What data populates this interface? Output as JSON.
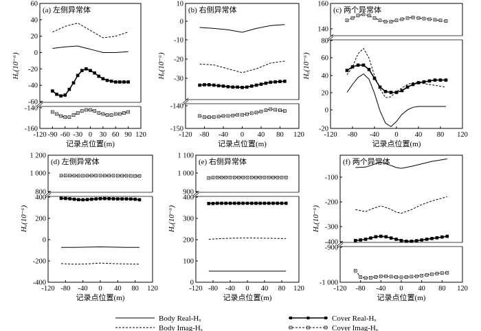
{
  "legend": {
    "body_real": "Body Real-Hₓ",
    "body_imag": "Body Imag-Hₓ",
    "cover_real": "Cover Real-Hₓ",
    "cover_imag": "Cover Imag-Hₓ"
  },
  "chart_data": [
    {
      "type": "line",
      "title": "(a) 左侧异常体",
      "xlabel": "记录点位置(m)",
      "ylabel": "Hₓ(10⁻⁶)",
      "x_ticks": [
        -120,
        -90,
        -60,
        -30,
        0,
        30,
        60,
        90,
        120
      ],
      "xlim": [
        -120,
        120
      ],
      "y_ticks": [
        60,
        40,
        20,
        0,
        -20,
        -40,
        -60,
        -140,
        -160
      ],
      "y_break": true,
      "series": [
        {
          "key": "body_imag",
          "x": [
            -90,
            -60,
            -30,
            0,
            30,
            60,
            90
          ],
          "y": [
            25,
            32,
            36,
            27,
            18,
            20,
            25
          ]
        },
        {
          "key": "body_real",
          "x": [
            -90,
            -60,
            -30,
            0,
            30,
            60,
            90
          ],
          "y": [
            5,
            7,
            8,
            4,
            0,
            0,
            1
          ]
        },
        {
          "key": "cover_real",
          "x": [
            -90,
            -80,
            -70,
            -60,
            -50,
            -40,
            -30,
            -20,
            -10,
            0,
            10,
            20,
            30,
            40,
            50,
            60,
            70,
            80,
            90
          ],
          "y": [
            -47,
            -51,
            -53,
            -52,
            -45,
            -37,
            -28,
            -22,
            -20,
            -22,
            -25,
            -29,
            -32,
            -34,
            -35,
            -36,
            -36,
            -36,
            -36
          ]
        },
        {
          "key": "cover_imag",
          "x": [
            -90,
            -80,
            -70,
            -60,
            -50,
            -40,
            -30,
            -20,
            -10,
            0,
            10,
            20,
            30,
            40,
            50,
            60,
            70,
            80,
            90
          ],
          "y": [
            -144,
            -146,
            -148,
            -149,
            -149,
            -147,
            -145,
            -143,
            -142,
            -142,
            -143,
            -145,
            -146,
            -147,
            -147,
            -146,
            -146,
            -145,
            -144
          ]
        }
      ]
    },
    {
      "type": "line",
      "title": "(b) 右侧异常体",
      "xlabel": "记录点位置(m)",
      "ylabel": "Hₓ(10⁻⁶)",
      "x_ticks": [
        -120,
        -80,
        -40,
        0,
        40,
        80,
        120
      ],
      "xlim": [
        -120,
        120
      ],
      "y_ticks": [
        10,
        0,
        -10,
        -20,
        -30,
        -140,
        -150
      ],
      "y_break": true,
      "series": [
        {
          "key": "body_real",
          "x": [
            -90,
            -60,
            -30,
            0,
            30,
            60,
            90
          ],
          "y": [
            -2.5,
            -3,
            -3.7,
            -5,
            -3,
            -1.5,
            -1
          ]
        },
        {
          "key": "body_imag",
          "x": [
            -90,
            -60,
            -30,
            0,
            30,
            60,
            90
          ],
          "y": [
            -21.5,
            -22,
            -24,
            -26,
            -24,
            -21,
            -20
          ]
        },
        {
          "key": "cover_real",
          "x": [
            -90,
            -80,
            -70,
            -60,
            -50,
            -40,
            -30,
            -20,
            -10,
            0,
            10,
            20,
            30,
            40,
            50,
            60,
            70,
            80,
            90
          ],
          "y": [
            -32.5,
            -32.3,
            -32.3,
            -32.5,
            -32.8,
            -33,
            -33.3,
            -33.5,
            -33.5,
            -33.7,
            -33.5,
            -33,
            -32.5,
            -32,
            -31.5,
            -31,
            -30.8,
            -30.6,
            -30.5
          ]
        },
        {
          "key": "cover_imag",
          "x": [
            -90,
            -80,
            -70,
            -60,
            -50,
            -40,
            -30,
            -20,
            -10,
            0,
            10,
            20,
            30,
            40,
            50,
            60,
            70,
            80,
            90
          ],
          "y": [
            -144.5,
            -145,
            -145,
            -145,
            -144.8,
            -144.5,
            -144.5,
            -144.3,
            -144,
            -144,
            -143.7,
            -143.3,
            -143,
            -142.5,
            -142,
            -141.5,
            -141.8,
            -142,
            -142.3
          ]
        }
      ]
    },
    {
      "type": "line",
      "title": "(c) 两个异常体",
      "xlabel": "记录点位置(m)",
      "ylabel": "Hₓ(10⁻⁶)",
      "x_ticks": [
        -120,
        -80,
        -40,
        0,
        40,
        80,
        120
      ],
      "xlim": [
        -120,
        120
      ],
      "y_ticks": [
        160,
        140,
        80,
        60,
        40,
        20,
        0,
        -20
      ],
      "y_break": true,
      "series": [
        {
          "key": "cover_imag",
          "x": [
            -90,
            -80,
            -70,
            -60,
            -50,
            -40,
            -30,
            -20,
            -10,
            0,
            10,
            20,
            30,
            40,
            50,
            60,
            70,
            80,
            90
          ],
          "y": [
            146,
            148,
            150,
            151,
            150,
            148,
            146,
            145,
            145,
            146,
            147,
            148,
            148.5,
            148,
            147.5,
            147,
            146.5,
            146,
            145.5
          ]
        },
        {
          "key": "body_real",
          "x": [
            -90,
            -80,
            -70,
            -60,
            -50,
            -40,
            -30,
            -20,
            -10,
            0,
            10,
            20,
            30,
            40,
            50,
            60,
            70,
            80,
            90
          ],
          "y": [
            21,
            30,
            38,
            42,
            36,
            20,
            0,
            -14,
            -18,
            -12,
            -4,
            1,
            4,
            5,
            5,
            5,
            5,
            5,
            5
          ]
        },
        {
          "key": "body_imag",
          "x": [
            -90,
            -80,
            -70,
            -60,
            -50,
            -40,
            -30,
            -20,
            -10,
            0,
            10,
            20,
            30,
            40,
            50,
            60,
            70,
            80,
            90
          ],
          "y": [
            41,
            50,
            65,
            71,
            60,
            40,
            25,
            15,
            16,
            22,
            26,
            30,
            32,
            32,
            31,
            30,
            29,
            28,
            27
          ]
        },
        {
          "key": "cover_real",
          "x": [
            -90,
            -80,
            -70,
            -60,
            -50,
            -40,
            -30,
            -20,
            -10,
            0,
            10,
            20,
            30,
            40,
            50,
            60,
            70,
            80,
            90
          ],
          "y": [
            46,
            50,
            52,
            52,
            47,
            37,
            27,
            22,
            21,
            21,
            23,
            27,
            30,
            32,
            33,
            34,
            35,
            35,
            35
          ]
        }
      ]
    },
    {
      "type": "line",
      "title": "(d) 左侧异常体",
      "xlabel": "记录点位置(m)",
      "ylabel": "Hₓ(10⁻⁶)",
      "x_ticks": [
        -120,
        -80,
        -40,
        0,
        40,
        80,
        120
      ],
      "xlim": [
        -120,
        120
      ],
      "y_ticks": [
        "1 200",
        "1 000",
        "800",
        "400",
        "200",
        "0",
        "-200",
        "-400"
      ],
      "y_break": true,
      "series": [
        {
          "key": "cover_imag",
          "x": [
            -90,
            -80,
            -70,
            -60,
            -50,
            -40,
            -30,
            -20,
            -10,
            0,
            10,
            20,
            30,
            40,
            50,
            60,
            70,
            80,
            90
          ],
          "y": [
            975,
            976,
            975,
            975,
            974,
            974,
            975,
            975,
            975,
            975,
            975,
            975,
            975,
            974,
            974,
            974,
            973,
            972,
            972
          ]
        },
        {
          "key": "cover_real",
          "x": [
            -90,
            -80,
            -70,
            -60,
            -50,
            -40,
            -30,
            -20,
            -10,
            0,
            10,
            20,
            30,
            40,
            50,
            60,
            70,
            80,
            90
          ],
          "y": [
            388,
            387,
            384,
            380,
            376,
            375,
            377,
            380,
            383,
            385,
            386,
            385,
            384,
            383,
            383,
            383,
            382,
            380,
            375
          ]
        },
        {
          "key": "body_real",
          "x": [
            -90,
            -60,
            -30,
            0,
            30,
            60,
            90
          ],
          "y": [
            -73,
            -72,
            -70,
            -68,
            -70,
            -72,
            -73
          ]
        },
        {
          "key": "body_imag",
          "x": [
            -90,
            -60,
            -30,
            0,
            30,
            60,
            90
          ],
          "y": [
            -225,
            -230,
            -228,
            -220,
            -225,
            -228,
            -230
          ]
        }
      ]
    },
    {
      "type": "line",
      "title": "(e) 右侧异常体",
      "xlabel": "记录点位置(m)",
      "ylabel": "Hₓ(10⁻⁶)",
      "x_ticks": [
        -120,
        -80,
        -40,
        0,
        40,
        80,
        120
      ],
      "xlim": [
        -120,
        120
      ],
      "y_ticks": [
        "1 100",
        "1 000",
        "900",
        "400",
        "300",
        "200",
        "100",
        "0"
      ],
      "y_break": true,
      "series": [
        {
          "key": "cover_imag",
          "x": [
            -90,
            -80,
            -70,
            -60,
            -50,
            -40,
            -30,
            -20,
            -10,
            0,
            10,
            20,
            30,
            40,
            50,
            60,
            70,
            80,
            90
          ],
          "y": [
            975,
            977,
            978,
            978,
            978,
            978,
            978,
            978,
            978,
            978,
            978,
            978,
            978,
            978,
            978,
            978,
            978,
            978,
            978
          ]
        },
        {
          "key": "cover_real",
          "x": [
            -90,
            -80,
            -70,
            -60,
            -50,
            -40,
            -30,
            -20,
            -10,
            0,
            10,
            20,
            30,
            40,
            50,
            60,
            70,
            80,
            90
          ],
          "y": [
            370,
            370,
            371,
            371,
            371,
            371,
            371,
            371,
            371,
            371,
            371,
            371,
            371,
            371,
            371,
            371,
            371,
            371,
            371
          ]
        },
        {
          "key": "body_imag",
          "x": [
            -90,
            -60,
            -30,
            0,
            30,
            60,
            90
          ],
          "y": [
            202,
            205,
            207,
            208,
            207,
            206,
            205
          ]
        },
        {
          "key": "body_real",
          "x": [
            -90,
            -60,
            -30,
            0,
            30,
            60,
            90
          ],
          "y": [
            52,
            52,
            52,
            52,
            52,
            52,
            52
          ]
        }
      ]
    },
    {
      "type": "line",
      "title": "(f) 两个异常体",
      "xlabel": "记录点位置(m)",
      "ylabel": "Hₓ(10⁻⁶)",
      "x_ticks": [
        -120,
        -80,
        -40,
        0,
        40,
        80,
        120
      ],
      "xlim": [
        -120,
        120
      ],
      "y_ticks": [
        "-100",
        "-200",
        "-300",
        "-400",
        "-900",
        "-1 000"
      ],
      "y_break": true,
      "series": [
        {
          "key": "body_real",
          "x": [
            -90,
            -70,
            -55,
            -40,
            -25,
            -10,
            0,
            20,
            40,
            60,
            90
          ],
          "y": [
            -100,
            -98,
            -88,
            -78,
            -88,
            -100,
            -103,
            -95,
            -85,
            -75,
            -65
          ]
        },
        {
          "key": "body_imag",
          "x": [
            -90,
            -70,
            -55,
            -40,
            -25,
            -10,
            0,
            20,
            40,
            60,
            90
          ],
          "y": [
            -270,
            -278,
            -265,
            -255,
            -265,
            -280,
            -285,
            -270,
            -250,
            -235,
            -218
          ]
        },
        {
          "key": "cover_real",
          "x": [
            -90,
            -80,
            -70,
            -60,
            -50,
            -40,
            -30,
            -20,
            -10,
            0,
            10,
            20,
            30,
            40,
            50,
            60,
            70,
            80,
            90
          ],
          "y": [
            -395,
            -393,
            -390,
            -385,
            -380,
            -378,
            -380,
            -385,
            -390,
            -395,
            -398,
            -398,
            -396,
            -393,
            -390,
            -387,
            -384,
            -381,
            -378
          ]
        },
        {
          "key": "cover_imag",
          "x": [
            -90,
            -80,
            -70,
            -60,
            -50,
            -40,
            -30,
            -20,
            -10,
            0,
            10,
            20,
            30,
            40,
            50,
            60,
            70,
            80,
            90
          ],
          "y": [
            -967,
            -985,
            -988,
            -987,
            -985,
            -983,
            -983,
            -984,
            -985,
            -986,
            -985,
            -984,
            -983,
            -981,
            -979,
            -977,
            -975,
            -974,
            -973
          ]
        }
      ]
    }
  ]
}
